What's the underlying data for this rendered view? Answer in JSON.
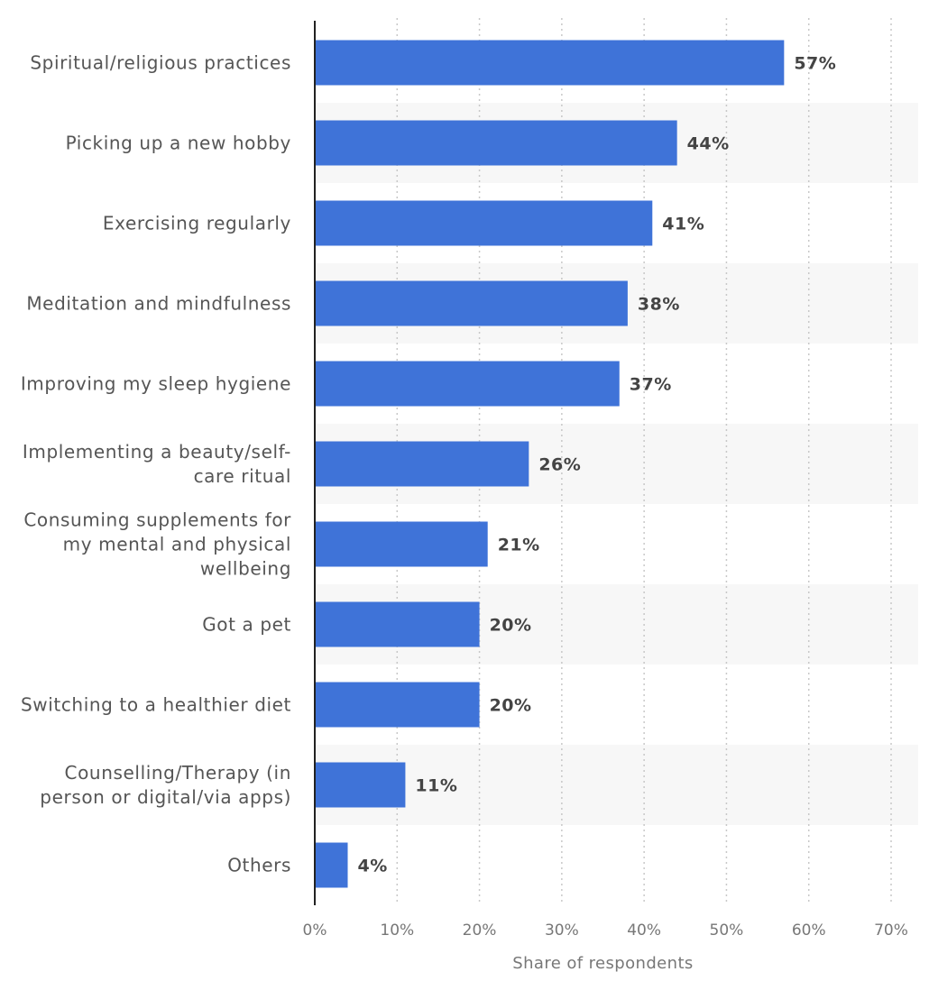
{
  "chart_data": {
    "type": "bar",
    "orientation": "horizontal",
    "categories": [
      "Spiritual/religious practices",
      "Picking up a new hobby",
      "Exercising regularly",
      "Meditation and mindfulness",
      "Improving my sleep hygiene",
      "Implementing a beauty/self-care ritual",
      "Consuming supplements for my mental and physical wellbeing",
      "Got a pet",
      "Switching to a healthier diet",
      "Counselling/Therapy (in person or digital/via apps)",
      "Others"
    ],
    "category_lines": [
      [
        "Spiritual/religious practices"
      ],
      [
        "Picking up a new hobby"
      ],
      [
        "Exercising regularly"
      ],
      [
        "Meditation and mindfulness"
      ],
      [
        "Improving my sleep hygiene"
      ],
      [
        "Implementing a beauty/self-",
        "care ritual"
      ],
      [
        "Consuming supplements for",
        "my mental and physical",
        "wellbeing"
      ],
      [
        "Got a pet"
      ],
      [
        "Switching to a healthier diet"
      ],
      [
        "Counselling/Therapy (in",
        "person or digital/via apps)"
      ],
      [
        "Others"
      ]
    ],
    "values": [
      57,
      44,
      41,
      38,
      37,
      26,
      21,
      20,
      20,
      11,
      4
    ],
    "value_labels": [
      "57%",
      "44%",
      "41%",
      "38%",
      "37%",
      "26%",
      "21%",
      "20%",
      "20%",
      "11%",
      "4%"
    ],
    "xlabel": "Share of respondents",
    "xlim": [
      0,
      70
    ],
    "ticks": [
      0,
      10,
      20,
      30,
      40,
      50,
      60,
      70
    ],
    "tick_labels": [
      "0%",
      "10%",
      "20%",
      "30%",
      "40%",
      "50%",
      "60%",
      "70%"
    ],
    "grid": true,
    "grid_style": "dotted vertical",
    "alternating_row_bands": true,
    "legend": "none",
    "colors": {
      "bar": "#3f73d8",
      "band": "#f7f7f7",
      "grid": "#c8c8c8",
      "axis": "#222222"
    }
  }
}
